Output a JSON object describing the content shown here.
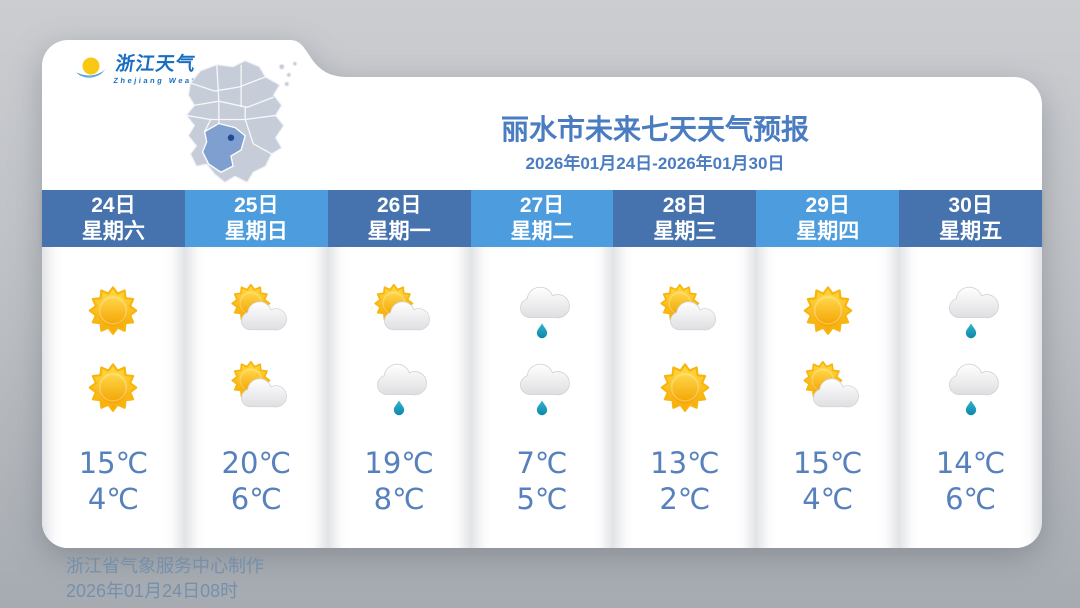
{
  "brand": {
    "name": "浙江天气",
    "name_en": "Zhejiang  Weather",
    "logo_icon": "sun-over-wave-icon",
    "map_icon": "zhejiang-province-map"
  },
  "header": {
    "title": "丽水市未来七天天气预报",
    "date_range": "2026年01月24日-2026年01月30日"
  },
  "forecast": {
    "days": [
      {
        "date": "24日",
        "weekday": "星期六",
        "header_style": "dark",
        "icon_day": "sunny",
        "icon_night": "sunny",
        "high": "15℃",
        "low": "4℃"
      },
      {
        "date": "25日",
        "weekday": "星期日",
        "header_style": "light",
        "icon_day": "partly-cloudy",
        "icon_night": "partly-cloudy",
        "high": "20℃",
        "low": "6℃"
      },
      {
        "date": "26日",
        "weekday": "星期一",
        "header_style": "dark",
        "icon_day": "partly-cloudy",
        "icon_night": "light-rain",
        "high": "19℃",
        "low": "8℃"
      },
      {
        "date": "27日",
        "weekday": "星期二",
        "header_style": "light",
        "icon_day": "light-rain",
        "icon_night": "light-rain",
        "high": "7℃",
        "low": "5℃"
      },
      {
        "date": "28日",
        "weekday": "星期三",
        "header_style": "dark",
        "icon_day": "partly-cloudy",
        "icon_night": "sunny",
        "high": "13℃",
        "low": "2℃"
      },
      {
        "date": "29日",
        "weekday": "星期四",
        "header_style": "light",
        "icon_day": "sunny",
        "icon_night": "partly-cloudy",
        "high": "15℃",
        "low": "4℃"
      },
      {
        "date": "30日",
        "weekday": "星期五",
        "header_style": "dark",
        "icon_day": "light-rain",
        "icon_night": "light-rain",
        "high": "14℃",
        "low": "6℃"
      }
    ]
  },
  "footer": {
    "credit": "浙江省气象服务中心制作",
    "issued": "2026年01月24日08时"
  },
  "colors": {
    "header_dark": "#4673ad",
    "header_light": "#4d9dde",
    "title_blue": "#4a7cc1",
    "temp_blue": "#5681bc",
    "footer_blue": "#7590ab",
    "rain_drop": "#1d9cba",
    "sun_yellow": "#fcc40a",
    "map_base": "#c6ccd8",
    "map_highlight": "#7f9fd0"
  }
}
